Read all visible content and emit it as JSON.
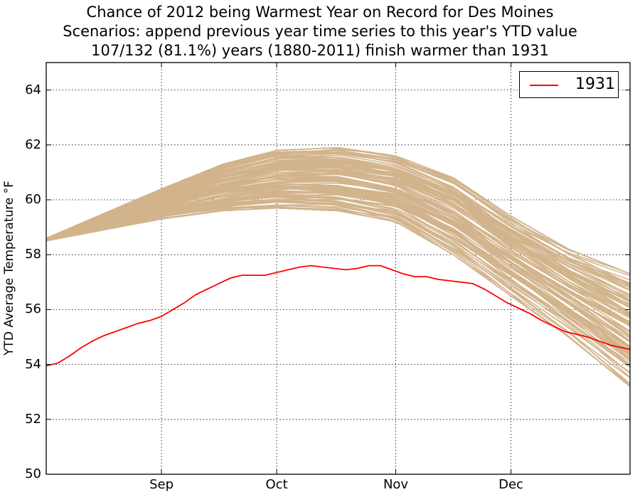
{
  "chart_data": {
    "type": "line",
    "title": "Chance of 2012 being Warmest Year on Record for Des Moines",
    "subtitle": "Scenarios: append previous year time series to this year's YTD value",
    "subtitle2": "107/132 (81.1%) years (1880-2011) finish warmer than 1931",
    "xlabel": "",
    "ylabel": "YTD Average Temperature °F",
    "ylim": [
      50,
      65
    ],
    "yticks": [
      50,
      52,
      54,
      56,
      58,
      60,
      62,
      64
    ],
    "xticks": [
      {
        "label": "Sep",
        "day": 244
      },
      {
        "label": "Oct",
        "day": 274
      },
      {
        "label": "Nov",
        "day": 305
      },
      {
        "label": "Dec",
        "day": 335
      }
    ],
    "xlim_day": [
      214,
      366
    ],
    "grid": true,
    "legend": {
      "position": "top-right",
      "entries": [
        {
          "label": "1931",
          "color": "#ff0000"
        }
      ]
    },
    "series": [
      {
        "name": "1931",
        "color": "#ff0000",
        "points": [
          [
            214,
            53.95
          ],
          [
            217,
            54.05
          ],
          [
            220,
            54.3
          ],
          [
            223,
            54.6
          ],
          [
            226,
            54.85
          ],
          [
            229,
            55.05
          ],
          [
            232,
            55.2
          ],
          [
            235,
            55.35
          ],
          [
            238,
            55.5
          ],
          [
            241,
            55.6
          ],
          [
            244,
            55.75
          ],
          [
            247,
            56.0
          ],
          [
            250,
            56.25
          ],
          [
            253,
            56.55
          ],
          [
            256,
            56.75
          ],
          [
            259,
            56.95
          ],
          [
            262,
            57.15
          ],
          [
            265,
            57.25
          ],
          [
            268,
            57.25
          ],
          [
            271,
            57.25
          ],
          [
            274,
            57.35
          ],
          [
            277,
            57.45
          ],
          [
            280,
            57.55
          ],
          [
            283,
            57.6
          ],
          [
            286,
            57.55
          ],
          [
            289,
            57.5
          ],
          [
            292,
            57.45
          ],
          [
            295,
            57.5
          ],
          [
            298,
            57.6
          ],
          [
            301,
            57.6
          ],
          [
            304,
            57.45
          ],
          [
            307,
            57.3
          ],
          [
            310,
            57.2
          ],
          [
            313,
            57.2
          ],
          [
            316,
            57.1
          ],
          [
            319,
            57.05
          ],
          [
            322,
            57.0
          ],
          [
            325,
            56.95
          ],
          [
            328,
            56.75
          ],
          [
            331,
            56.5
          ],
          [
            334,
            56.25
          ],
          [
            337,
            56.05
          ],
          [
            340,
            55.85
          ],
          [
            343,
            55.6
          ],
          [
            346,
            55.4
          ],
          [
            349,
            55.2
          ],
          [
            352,
            55.1
          ],
          [
            355,
            55.0
          ],
          [
            358,
            54.85
          ],
          [
            361,
            54.7
          ],
          [
            366,
            54.55
          ]
        ]
      }
    ],
    "scenario_band": {
      "color": "#d2b48c",
      "count": 132,
      "days": [
        214,
        244,
        260,
        274,
        290,
        305,
        320,
        335,
        350,
        366
      ],
      "lower": [
        58.5,
        59.3,
        59.6,
        59.7,
        59.6,
        59.2,
        58.0,
        56.5,
        55.0,
        53.2
      ],
      "upper": [
        58.6,
        60.4,
        61.3,
        61.8,
        61.9,
        61.6,
        60.8,
        59.4,
        58.2,
        57.3
      ]
    }
  }
}
